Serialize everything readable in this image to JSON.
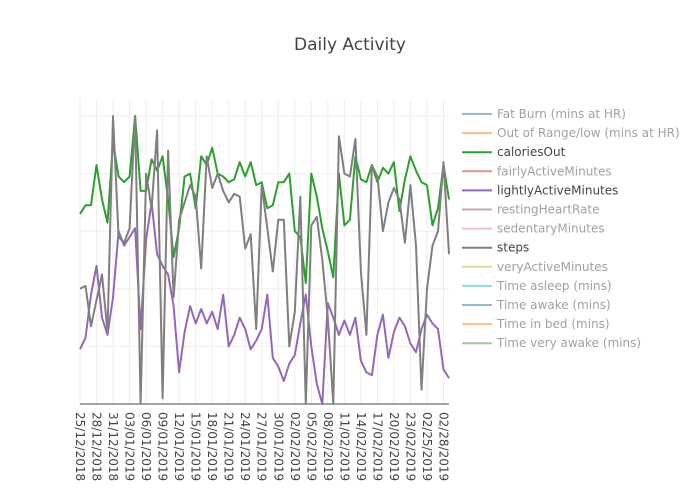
{
  "chart_data": {
    "type": "line",
    "title": "Daily Activity",
    "xlabel": "",
    "ylabel": "",
    "grid": true,
    "legend_position": "right",
    "x_tick_labels": [
      "25/12/2018",
      "28/12/2018",
      "31/12/2018",
      "03/01/2019",
      "06/01/2019",
      "09/01/2019",
      "12/01/2019",
      "15/01/2019",
      "18/01/2019",
      "21/01/2019",
      "24/01/2019",
      "27/01/2019",
      "30/01/2019",
      "02/02/2019",
      "05/02/2019",
      "08/02/2019",
      "11/02/2019",
      "14/02/2019",
      "17/02/2019",
      "20/02/2019",
      "23/02/2019",
      "02/25/2019",
      "02/28/2019"
    ],
    "x_tick_step_days": 3,
    "x_range_days": [
      0,
      67
    ],
    "ylim": [
      0,
      100
    ],
    "series": [
      {
        "name": "Fat Burn (mins at HR)",
        "color": "#1f77b4",
        "dimmed": true,
        "values": []
      },
      {
        "name": "Out of Range/low (mins at HR)",
        "color": "#ff7f0e",
        "dimmed": true,
        "values": []
      },
      {
        "name": "caloriesOut",
        "color": "#2ca02c",
        "dimmed": false,
        "values": [
          66,
          69,
          69,
          83,
          71,
          63,
          91,
          79,
          77,
          79,
          100,
          74,
          74,
          85,
          81,
          86,
          71,
          51,
          61,
          79,
          80,
          68,
          86,
          83,
          89,
          80,
          79,
          77,
          78,
          84,
          79,
          84,
          76,
          77,
          68,
          69,
          77,
          77,
          80,
          60,
          58,
          42,
          80,
          72,
          61,
          53,
          44,
          80,
          62,
          64,
          86,
          78,
          77,
          83,
          77,
          82,
          80,
          84,
          67,
          78,
          86,
          81,
          77,
          76,
          62,
          68,
          83,
          71
        ]
      },
      {
        "name": "fairlyActiveMinutes",
        "color": "#d62728",
        "dimmed": true,
        "values": []
      },
      {
        "name": "lightlyActiveMinutes",
        "color": "#9467bd",
        "dimmed": false,
        "values": [
          19,
          23,
          38,
          48,
          30,
          24,
          37,
          60,
          55,
          58,
          61,
          26,
          57,
          70,
          52,
          48,
          45,
          34,
          11,
          25,
          34,
          28,
          33,
          28,
          32,
          26,
          38,
          20,
          24,
          30,
          26,
          19,
          22,
          26,
          38,
          16,
          13,
          8,
          14,
          17,
          28,
          38,
          20,
          7,
          0,
          35,
          30,
          24,
          29,
          24,
          30,
          15,
          11,
          10,
          24,
          31,
          16,
          25,
          30,
          27,
          21,
          18,
          26,
          31,
          28,
          26,
          12,
          9
        ]
      },
      {
        "name": "restingHeartRate",
        "color": "#8c564b",
        "dimmed": true,
        "values": []
      },
      {
        "name": "sedentaryMinutes",
        "color": "#e377c2",
        "dimmed": true,
        "values": []
      },
      {
        "name": "steps",
        "color": "#7f7f7f",
        "dimmed": false,
        "values": [
          40,
          41,
          27,
          36,
          45,
          25,
          100,
          58,
          56,
          61,
          100,
          0,
          80,
          68,
          95,
          2,
          88,
          37,
          64,
          70,
          76,
          72,
          47,
          86,
          75,
          80,
          74,
          70,
          73,
          72,
          54,
          59,
          26,
          76,
          61,
          46,
          64,
          64,
          20,
          32,
          72,
          0,
          62,
          65,
          50,
          30,
          0,
          93,
          80,
          79,
          92,
          46,
          24,
          83,
          79,
          60,
          70,
          75,
          71,
          56,
          76,
          55,
          5,
          40,
          55,
          60,
          84,
          52
        ]
      },
      {
        "name": "veryActiveMinutes",
        "color": "#bcbd22",
        "dimmed": true,
        "values": []
      },
      {
        "name": "Time asleep (mins)",
        "color": "#17becf",
        "dimmed": true,
        "values": []
      },
      {
        "name": "Time awake (mins)",
        "color": "#1f77b4",
        "dimmed": true,
        "values": []
      },
      {
        "name": "Time in bed (mins)",
        "color": "#ff7f0e",
        "dimmed": true,
        "values": []
      },
      {
        "name": "Time very awake (mins)",
        "color": "#2ca02c",
        "dimmed": true,
        "values": []
      }
    ]
  }
}
